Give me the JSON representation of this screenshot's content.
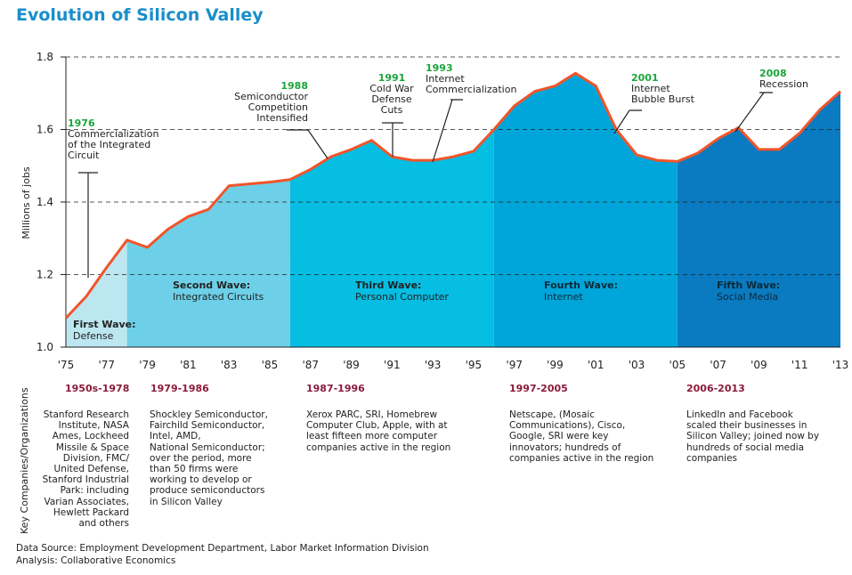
{
  "title": "Evolution of Silicon Valley",
  "chart_data": {
    "type": "area",
    "title": "Evolution of Silicon Valley",
    "ylabel": "Millions of jobs",
    "ylim": [
      1.0,
      1.8
    ],
    "yticks": [
      "1.0",
      "1.2",
      "1.4",
      "1.6",
      "1.8"
    ],
    "xticks": [
      "'75",
      "'77",
      "'79",
      "'81",
      "'83",
      "'85",
      "'87",
      "'89",
      "'91",
      "'93",
      "'95",
      "'97",
      "'99",
      "'01",
      "'03",
      "'05",
      "'07",
      "'09",
      "'11",
      "'13"
    ],
    "x": [
      1975,
      1976,
      1977,
      1978,
      1979,
      1980,
      1981,
      1982,
      1983,
      1984,
      1985,
      1986,
      1987,
      1988,
      1989,
      1990,
      1991,
      1992,
      1993,
      1994,
      1995,
      1996,
      1997,
      1998,
      1999,
      2000,
      2001,
      2002,
      2003,
      2004,
      2005,
      2006,
      2007,
      2008,
      2009,
      2010,
      2011,
      2012,
      2013
    ],
    "y": [
      1.08,
      1.14,
      1.22,
      1.295,
      1.275,
      1.325,
      1.36,
      1.38,
      1.445,
      1.45,
      1.455,
      1.462,
      1.49,
      1.525,
      1.545,
      1.57,
      1.525,
      1.515,
      1.515,
      1.525,
      1.54,
      1.6,
      1.665,
      1.705,
      1.72,
      1.755,
      1.72,
      1.6,
      1.53,
      1.515,
      1.512,
      1.535,
      1.575,
      1.605,
      1.545,
      1.545,
      1.59,
      1.655,
      1.705
    ],
    "grid": "dashed horizontal",
    "waves": [
      {
        "name": "First Wave:",
        "sub": "Defense",
        "start": 1975,
        "end": 1978,
        "color": "#bce6f0"
      },
      {
        "name": "Second Wave:",
        "sub": "Integrated Circuits",
        "start": 1978,
        "end": 1986,
        "color": "#6dd0e8"
      },
      {
        "name": "Third Wave:",
        "sub": "Personal Computer",
        "start": 1986,
        "end": 1996,
        "color": "#06bde2"
      },
      {
        "name": "Fourth Wave:",
        "sub": "Internet",
        "start": 1996,
        "end": 2005,
        "color": "#00a6d9"
      },
      {
        "name": "Fifth Wave:",
        "sub": "Social Media",
        "start": 2005,
        "end": 2013,
        "color": "#0a7bc0"
      }
    ],
    "annotations": [
      {
        "year": "1976",
        "lines": [
          "Commercialization",
          "of the Integrated",
          "Circuit"
        ]
      },
      {
        "year": "1988",
        "lines": [
          "Semiconductor",
          "Competition",
          "Intensified"
        ]
      },
      {
        "year": "1991",
        "lines": [
          "Cold War",
          "Defense",
          "Cuts"
        ]
      },
      {
        "year": "1993",
        "lines": [
          "Internet",
          "Commercialization"
        ]
      },
      {
        "year": "2001",
        "lines": [
          "Internet",
          "Bubble Burst"
        ]
      },
      {
        "year": "2008",
        "lines": [
          "Recession"
        ]
      }
    ],
    "line_color": "#f0552a",
    "year_color": "#1aa53a"
  },
  "key_label": "Key Companies/Organizations",
  "eras": [
    {
      "range": "1950s-1978",
      "companies": [
        "Stanford Research",
        "Institute, NASA",
        "Ames, Lockheed",
        "Missile & Space",
        "Division, FMC/",
        "United Defense,",
        "Stanford Industrial",
        "Park: including",
        "Varian Associates,",
        "Hewlett Packard",
        "and others"
      ]
    },
    {
      "range": "1979-1986",
      "companies": [
        "Shockley Semiconductor,",
        "Fairchild Semiconductor,",
        "Intel, AMD,",
        "National Semiconductor;",
        "over the period, more",
        "than 50 firms were",
        "working to develop or",
        "produce semiconductors",
        "in Silicon Valley"
      ]
    },
    {
      "range": "1987-1996",
      "companies": [
        "Xerox PARC, SRI, Homebrew",
        "Computer Club, Apple, with at",
        "least fifteen more computer",
        "companies active in the region"
      ]
    },
    {
      "range": "1997-2005",
      "companies": [
        "Netscape, (Mosaic",
        "Communications), Cisco,",
        "Google, SRI were key",
        "innovators; hundreds of",
        "companies active in the region"
      ]
    },
    {
      "range": "2006-2013",
      "companies": [
        "LinkedIn and Facebook",
        "scaled their businesses in",
        "Silicon Valley; joined now by",
        "hundreds of social media",
        "companies"
      ]
    }
  ],
  "footer": {
    "source": "Data Source: Employment Development Department, Labor Market Information Division",
    "analysis": "Analysis: Collaborative Economics"
  }
}
